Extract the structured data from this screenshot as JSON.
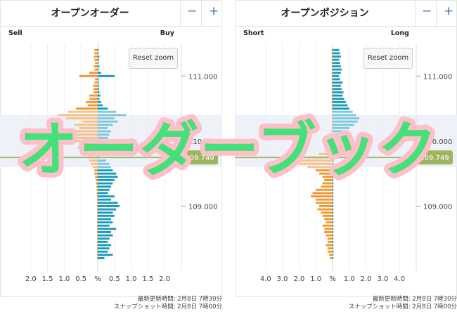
{
  "chart_data": [
    {
      "type": "bar",
      "title": "オープンオーダー",
      "left_label": "Sell",
      "right_label": "Buy",
      "reset_label": "Reset zoom",
      "minus_label": "−",
      "plus_label": "+",
      "current_price": "109.749",
      "current_price_value": 109.749,
      "yticks": [
        111.0,
        110.0,
        109.0
      ],
      "ytick_labels": [
        "111.000",
        "110.000",
        "109.000"
      ],
      "ylim": [
        108.0,
        111.5
      ],
      "xticks": [
        -2.0,
        -1.5,
        -1.0,
        -0.5,
        0,
        0.5,
        1.0,
        1.5,
        2.0
      ],
      "xtick_labels": [
        "2.0",
        "1.5",
        "1.0",
        "0.5",
        "%",
        "0.5",
        "1.0",
        "1.5",
        "2.0"
      ],
      "xlim": [
        -2.5,
        2.5
      ],
      "levels": [
        111.4,
        111.35,
        111.3,
        111.25,
        111.2,
        111.15,
        111.1,
        111.05,
        111.0,
        110.95,
        110.9,
        110.85,
        110.8,
        110.75,
        110.7,
        110.65,
        110.6,
        110.55,
        110.5,
        110.45,
        110.4,
        110.35,
        110.3,
        110.25,
        110.2,
        110.15,
        110.1,
        110.05,
        110.0,
        109.95,
        109.9,
        109.85,
        109.8,
        109.75,
        109.7,
        109.65,
        109.6,
        109.55,
        109.5,
        109.45,
        109.4,
        109.35,
        109.3,
        109.25,
        109.2,
        109.15,
        109.1,
        109.05,
        109.0,
        108.95,
        108.9,
        108.85,
        108.8,
        108.75,
        108.7,
        108.65,
        108.6,
        108.55,
        108.5,
        108.45,
        108.4,
        108.35,
        108.3,
        108.25,
        108.2
      ],
      "series": [
        {
          "name": "Sell",
          "values": [
            0.1,
            0.1,
            0.12,
            0.1,
            0.08,
            0.12,
            0.1,
            0.25,
            0.55,
            0.08,
            0.1,
            0.14,
            0.13,
            0.12,
            0.25,
            0.25,
            0.35,
            0.3,
            0.65,
            0.9,
            1.2,
            0.95,
            0.45,
            0.7,
            0.55,
            0.9,
            0.75,
            1.05,
            0.85,
            0.55,
            0.6,
            0.45,
            0.35,
            0.3,
            0.25,
            0.2,
            0.15,
            0.1,
            0.1,
            0.08,
            0.06,
            0.05,
            0.04,
            0.03,
            0.03,
            0.02,
            0.02,
            0.02,
            0.02,
            0.02,
            0.02,
            0.02,
            0.02,
            0.02,
            0.02,
            0.02,
            0.02,
            0.02,
            0.02,
            0.02,
            0.02,
            0.02,
            0.02,
            0.02,
            0.02
          ]
        },
        {
          "name": "Buy",
          "values": [
            0.03,
            0.03,
            0.05,
            0.04,
            0.02,
            0.05,
            0.03,
            0.1,
            0.5,
            0.03,
            0.03,
            0.04,
            0.04,
            0.05,
            0.08,
            0.05,
            0.1,
            0.15,
            0.3,
            0.55,
            0.85,
            0.5,
            0.6,
            0.45,
            0.3,
            0.4,
            0.35,
            0.3,
            0.25,
            0.2,
            0.15,
            0.1,
            0.06,
            0.05,
            0.25,
            0.35,
            0.4,
            0.45,
            0.55,
            0.6,
            0.5,
            0.45,
            0.4,
            0.35,
            0.3,
            0.5,
            0.4,
            0.6,
            0.65,
            0.55,
            0.45,
            0.5,
            0.4,
            0.45,
            0.35,
            0.55,
            0.4,
            0.45,
            0.35,
            0.3,
            0.4,
            0.35,
            0.3,
            0.45,
            0.2
          ]
        }
      ]
    },
    {
      "type": "bar",
      "title": "オープンポジション",
      "left_label": "Short",
      "right_label": "Long",
      "reset_label": "Reset zoom",
      "minus_label": "−",
      "plus_label": "+",
      "current_price": "109.749",
      "current_price_value": 109.749,
      "yticks": [
        111.0,
        110.0,
        109.0
      ],
      "ytick_labels": [
        "111.000",
        "110.000",
        "109.000"
      ],
      "ylim": [
        108.0,
        111.5
      ],
      "xticks": [
        -4.0,
        -3.0,
        -2.0,
        -1.0,
        0,
        1.0,
        2.0,
        3.0,
        4.0
      ],
      "xtick_labels": [
        "4.0",
        "3.0",
        "2.0",
        "1.0",
        "%",
        "1.0",
        "2.0",
        "3.0",
        "4.0"
      ],
      "xlim": [
        -5.0,
        5.0
      ],
      "levels": [
        111.4,
        111.35,
        111.3,
        111.25,
        111.2,
        111.15,
        111.1,
        111.05,
        111.0,
        110.95,
        110.9,
        110.85,
        110.8,
        110.75,
        110.7,
        110.65,
        110.6,
        110.55,
        110.5,
        110.45,
        110.4,
        110.35,
        110.3,
        110.25,
        110.2,
        110.15,
        110.1,
        110.05,
        110.0,
        109.95,
        109.9,
        109.85,
        109.8,
        109.75,
        109.7,
        109.65,
        109.6,
        109.55,
        109.5,
        109.45,
        109.4,
        109.35,
        109.3,
        109.25,
        109.2,
        109.15,
        109.1,
        109.05,
        109.0,
        108.95,
        108.9,
        108.85,
        108.8,
        108.75,
        108.7,
        108.65,
        108.6,
        108.55,
        108.5,
        108.45,
        108.4,
        108.35,
        108.3,
        108.25,
        108.2
      ],
      "series": [
        {
          "name": "Short",
          "values": [
            0.05,
            0.05,
            0.05,
            0.05,
            0.05,
            0.05,
            0.05,
            0.05,
            0.05,
            0.05,
            0.05,
            0.05,
            0.05,
            0.05,
            0.05,
            0.05,
            0.05,
            0.05,
            0.05,
            0.05,
            0.05,
            0.05,
            0.05,
            0.05,
            0.05,
            0.05,
            0.05,
            0.05,
            0.1,
            0.15,
            0.2,
            0.4,
            0.8,
            1.5,
            2.2,
            2.0,
            1.5,
            1.0,
            0.8,
            0.6,
            0.5,
            0.6,
            0.7,
            1.0,
            1.2,
            1.3,
            1.0,
            1.0,
            0.8,
            0.9,
            0.7,
            0.6,
            0.5,
            0.4,
            0.6,
            0.5,
            0.5,
            0.4,
            0.3,
            0.3,
            0.4,
            0.3,
            0.3,
            0.2,
            0.15
          ]
        },
        {
          "name": "Long",
          "values": [
            0.4,
            0.45,
            0.5,
            0.4,
            0.45,
            0.5,
            0.55,
            0.5,
            0.4,
            0.45,
            0.6,
            0.5,
            0.55,
            0.65,
            0.6,
            0.7,
            0.8,
            0.9,
            1.0,
            1.2,
            1.4,
            1.6,
            1.5,
            1.3,
            1.0,
            0.9,
            0.8,
            0.6,
            0.5,
            0.4,
            0.3,
            0.2,
            0.15,
            0.1,
            0.08,
            0.06,
            0.05,
            0.05,
            0.05,
            0.05,
            0.05,
            0.05,
            0.05,
            0.05,
            0.05,
            0.05,
            0.05,
            0.05,
            0.05,
            0.05,
            0.05,
            0.05,
            0.05,
            0.05,
            0.05,
            0.05,
            0.05,
            0.05,
            0.05,
            0.05,
            0.05,
            0.05,
            0.05,
            0.05,
            0.05
          ]
        }
      ]
    }
  ],
  "footer": {
    "updated": "最新更新時間: 2月8日 7時30分",
    "snapshot": "スナップショット時間: 2月8日 7時00分"
  },
  "watermark": "オーダーブック",
  "colors": {
    "left_bar": "#f29630",
    "left_bar_light": "#f8c08a",
    "right_bar": "#1b9ab9",
    "right_bar_light": "#7cc8dd",
    "price_line": "#a3b86a",
    "price_badge": "#9fb55e",
    "zoom_band": "#eef1f8",
    "watermark_text": "#46e07a",
    "watermark_outline": "#ffbfc8"
  }
}
